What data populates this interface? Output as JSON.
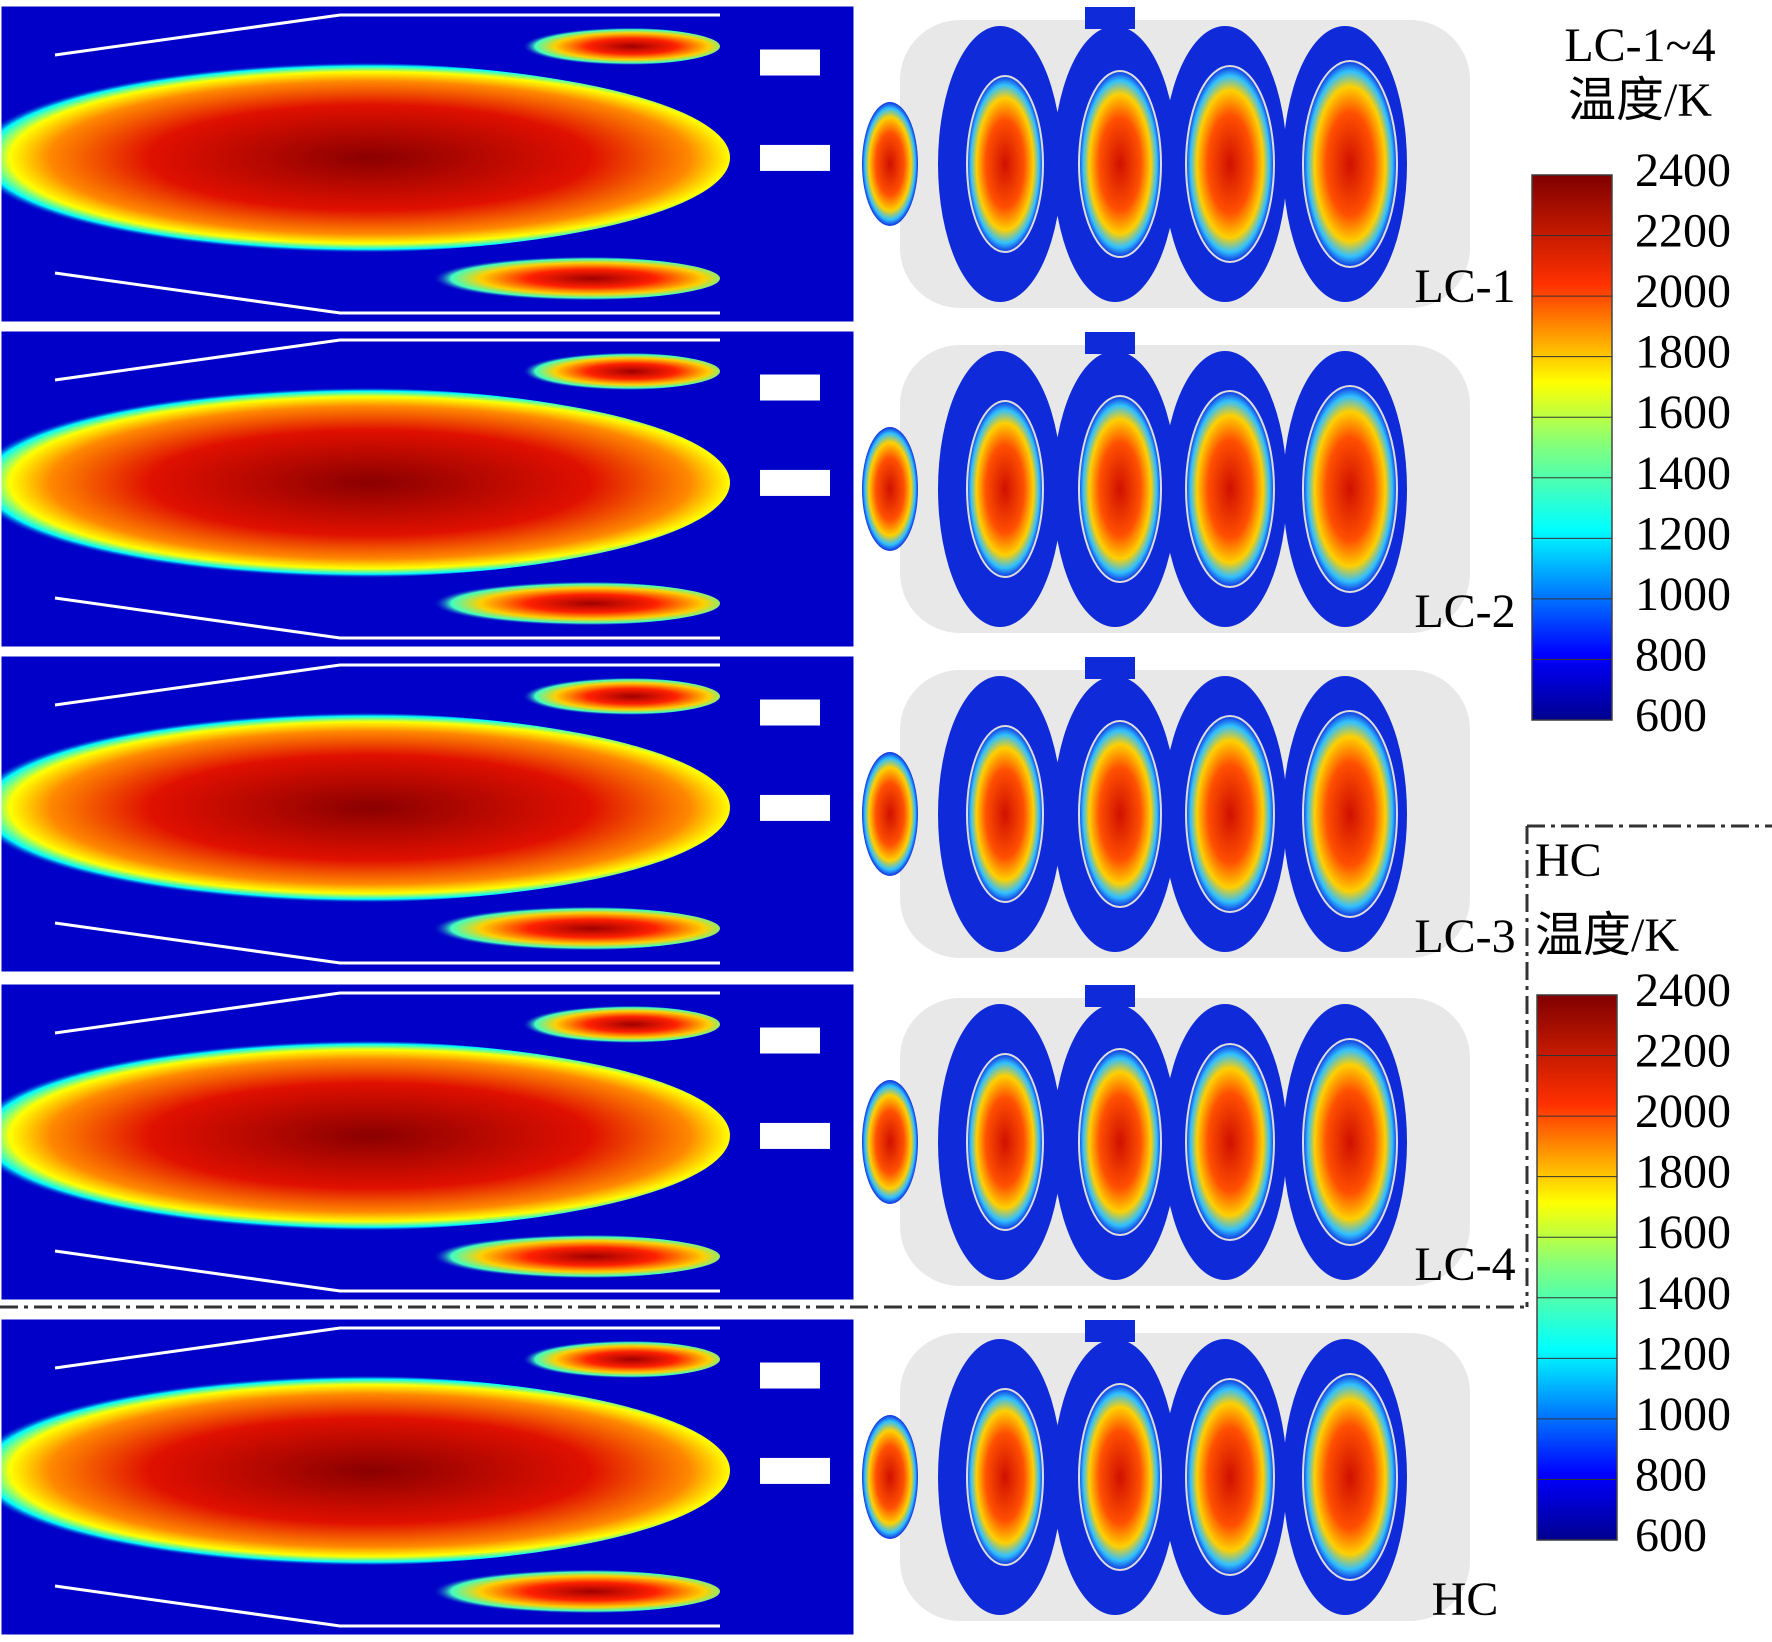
{
  "cases": [
    "LC-1",
    "LC-2",
    "LC-3",
    "LC-4",
    "HC"
  ],
  "legends": [
    {
      "title": [
        "LC-1~4",
        "温度/K"
      ],
      "ticks": [
        2400,
        2200,
        2000,
        1800,
        1600,
        1400,
        1200,
        1000,
        800,
        600
      ]
    },
    {
      "title": [
        "HC",
        "温度/K"
      ],
      "ticks": [
        2400,
        2200,
        2000,
        1800,
        1600,
        1400,
        1200,
        1000,
        800,
        600
      ]
    }
  ]
}
